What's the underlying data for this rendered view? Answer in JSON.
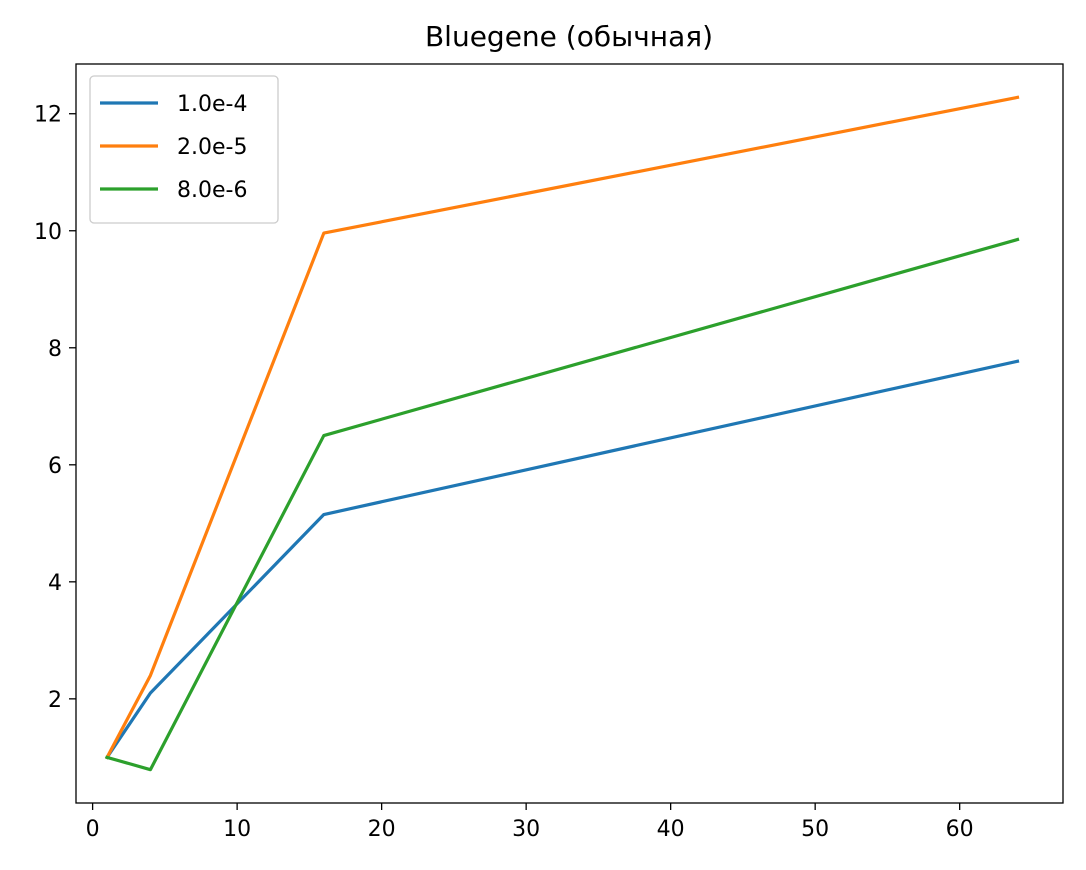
{
  "chart_data": {
    "type": "line",
    "title": "Bluegene (обычная)",
    "xlabel": "",
    "ylabel": "",
    "xlim": [
      -1.15,
      67.15
    ],
    "ylim": [
      0.22,
      12.85
    ],
    "xticks": [
      0,
      10,
      20,
      30,
      40,
      50,
      60
    ],
    "yticks": [
      2,
      4,
      6,
      8,
      10,
      12
    ],
    "grid": false,
    "legend": "top-left",
    "x": [
      1,
      4,
      16,
      64
    ],
    "series": [
      {
        "name": "1.0e-4",
        "color": "#1f77b4",
        "values": [
          1.0,
          2.1,
          5.15,
          7.77
        ]
      },
      {
        "name": "2.0e-5",
        "color": "#ff7f0e",
        "values": [
          1.0,
          2.4,
          9.96,
          12.28
        ]
      },
      {
        "name": "8.0e-6",
        "color": "#2ca02c",
        "values": [
          1.0,
          0.79,
          6.5,
          9.85
        ]
      }
    ]
  }
}
